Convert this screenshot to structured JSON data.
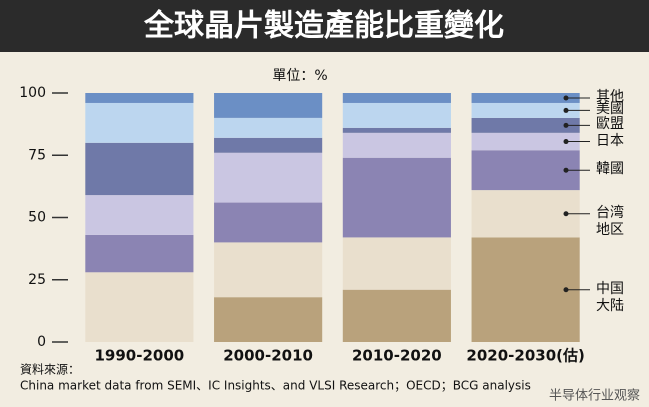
{
  "chart_data": {
    "type": "stacked-bar",
    "title": "全球晶片製造產能比重變化",
    "subtitle": "單位：%",
    "categories": [
      "1990-2000",
      "2000-2010",
      "2010-2020",
      "2020-2030(估)"
    ],
    "series": [
      {
        "name": "中国大陆",
        "color": "#b9a27c",
        "values": [
          0,
          18,
          21,
          42
        ]
      },
      {
        "name": "台湾地区",
        "color": "#e9dfcd",
        "values": [
          28,
          22,
          21,
          19
        ]
      },
      {
        "name": "韓國",
        "color": "#8b84b3",
        "values": [
          15,
          16,
          32,
          16
        ]
      },
      {
        "name": "日本",
        "color": "#cac6e2",
        "values": [
          16,
          20,
          10,
          7
        ]
      },
      {
        "name": "歐盟",
        "color": "#6f79a8",
        "values": [
          21,
          6,
          2,
          6
        ]
      },
      {
        "name": "美國",
        "color": "#bcd6ef",
        "values": [
          16,
          8,
          10,
          6
        ]
      },
      {
        "name": "其他",
        "color": "#6b8fc5",
        "values": [
          4,
          10,
          4,
          4
        ]
      }
    ],
    "ylim": [
      0,
      100
    ],
    "yticks": [
      0,
      25,
      50,
      75,
      100
    ],
    "source_label": "資料來源：",
    "source": "China market data from SEMI、IC Insights、and VLSI Research；OECD；BCG analysis",
    "watermark": "半导体行业观察"
  }
}
